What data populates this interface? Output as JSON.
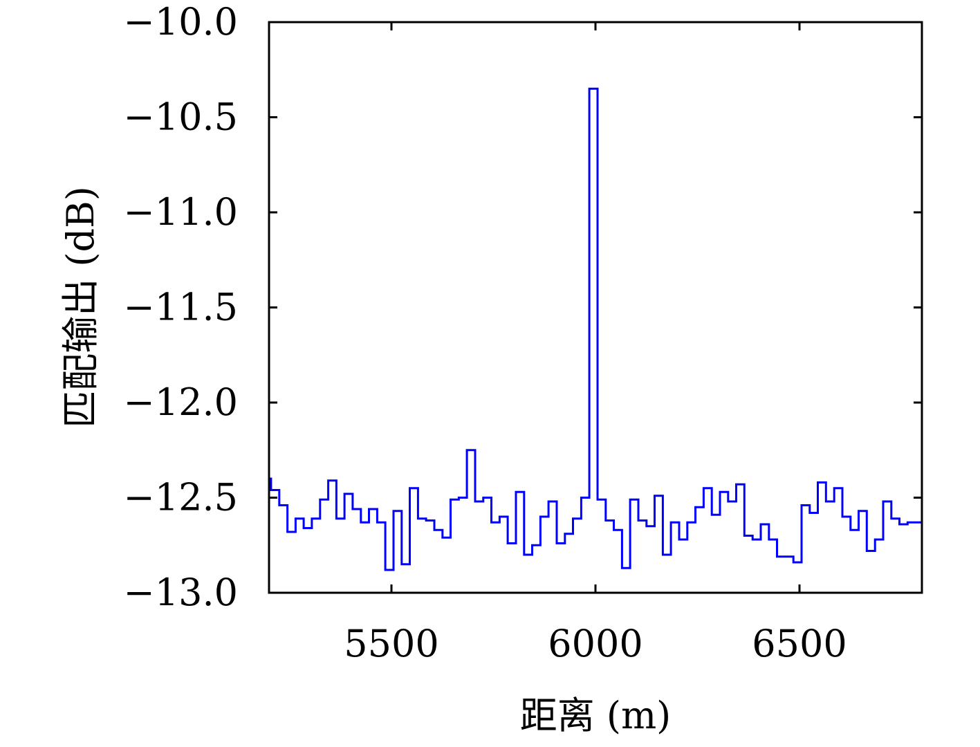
{
  "chart_data": {
    "type": "line",
    "title": "",
    "xlabel": "距离 (m)",
    "ylabel": "匹配输出 (dB)",
    "xlim": [
      5200,
      6800
    ],
    "ylim": [
      -13.0,
      -10.0
    ],
    "x_ticks": [
      5500,
      6000,
      6500
    ],
    "y_ticks": [
      -10.0,
      -10.5,
      -11.0,
      -11.5,
      -12.0,
      -12.5,
      -13.0
    ],
    "x_tick_labels": [
      "5500",
      "6000",
      "6500"
    ],
    "y_tick_labels": [
      "−10.0",
      "−10.5",
      "−11.0",
      "−11.5",
      "−12.0",
      "−12.5",
      "−13.0"
    ],
    "grid": false,
    "legend": "none",
    "colors": {
      "series": "#0000ff",
      "axes": "#000000"
    },
    "series": [
      {
        "step": "pre",
        "x": [
          5200,
          5205,
          5225,
          5245,
          5265,
          5285,
          5305,
          5325,
          5345,
          5365,
          5385,
          5405,
          5425,
          5445,
          5465,
          5485,
          5505,
          5525,
          5545,
          5565,
          5585,
          5605,
          5625,
          5645,
          5665,
          5685,
          5705,
          5725,
          5745,
          5765,
          5785,
          5805,
          5825,
          5845,
          5865,
          5885,
          5905,
          5925,
          5945,
          5965,
          5985,
          6005,
          6025,
          6045,
          6065,
          6085,
          6105,
          6125,
          6145,
          6165,
          6185,
          6205,
          6225,
          6245,
          6265,
          6285,
          6305,
          6325,
          6345,
          6365,
          6385,
          6405,
          6425,
          6445,
          6465,
          6485,
          6505,
          6525,
          6545,
          6565,
          6585,
          6605,
          6625,
          6645,
          6665,
          6685,
          6705,
          6725,
          6745,
          6765,
          6785,
          6800
        ],
        "y": [
          -12.4,
          -12.46,
          -12.54,
          -12.68,
          -12.61,
          -12.66,
          -12.61,
          -12.51,
          -12.41,
          -12.61,
          -12.48,
          -12.56,
          -12.63,
          -12.56,
          -12.63,
          -12.88,
          -12.57,
          -12.85,
          -12.45,
          -12.61,
          -12.62,
          -12.67,
          -12.71,
          -12.51,
          -12.5,
          -12.25,
          -12.52,
          -12.5,
          -12.63,
          -12.6,
          -12.74,
          -12.47,
          -12.8,
          -12.75,
          -12.6,
          -12.52,
          -12.74,
          -12.69,
          -12.61,
          -12.5,
          -10.35,
          -12.51,
          -12.62,
          -12.67,
          -12.87,
          -12.51,
          -12.62,
          -12.65,
          -12.49,
          -12.8,
          -12.63,
          -12.72,
          -12.63,
          -12.55,
          -12.45,
          -12.59,
          -12.47,
          -12.52,
          -12.43,
          -12.7,
          -12.72,
          -12.64,
          -12.72,
          -12.81,
          -12.81,
          -12.84,
          -12.54,
          -12.58,
          -12.42,
          -12.52,
          -12.45,
          -12.6,
          -12.67,
          -12.57,
          -12.78,
          -12.72,
          -12.52,
          -12.61,
          -12.64,
          -12.63,
          -12.63,
          -12.63
        ]
      }
    ]
  }
}
